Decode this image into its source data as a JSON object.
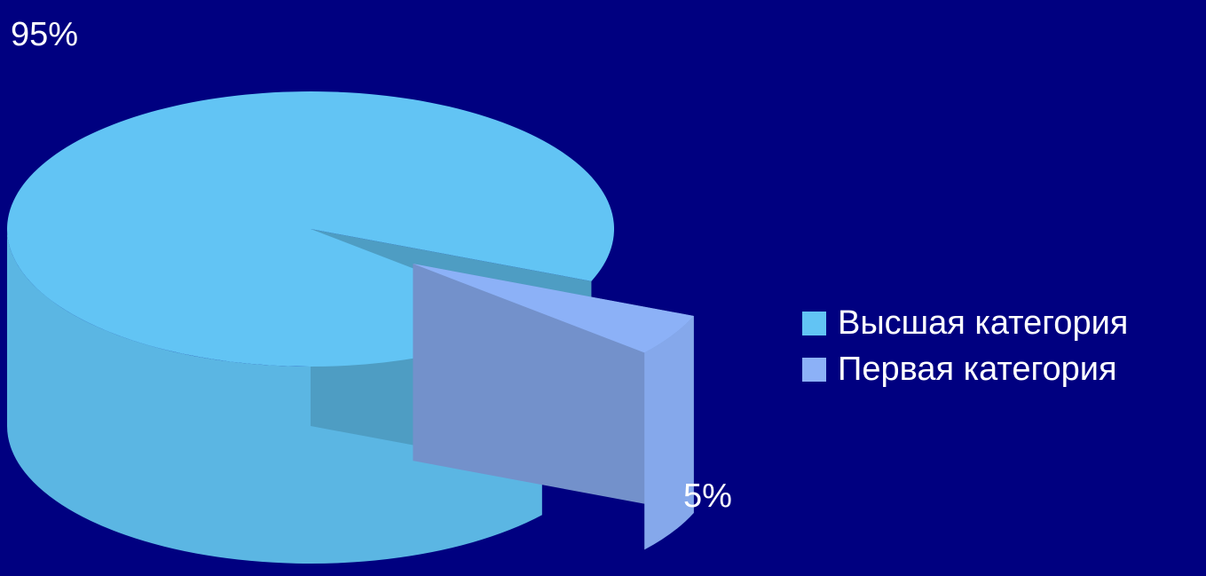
{
  "chart_data": {
    "type": "pie",
    "title": "",
    "categories": [
      "Высшая категория",
      "Первая категория"
    ],
    "values": [
      95,
      5
    ],
    "data_labels": [
      "95%",
      "5%"
    ],
    "colors": [
      "#62c4f4",
      "#8cb1f7"
    ],
    "background": "#000080",
    "legend_position": "right",
    "style": "3d-exploded"
  }
}
